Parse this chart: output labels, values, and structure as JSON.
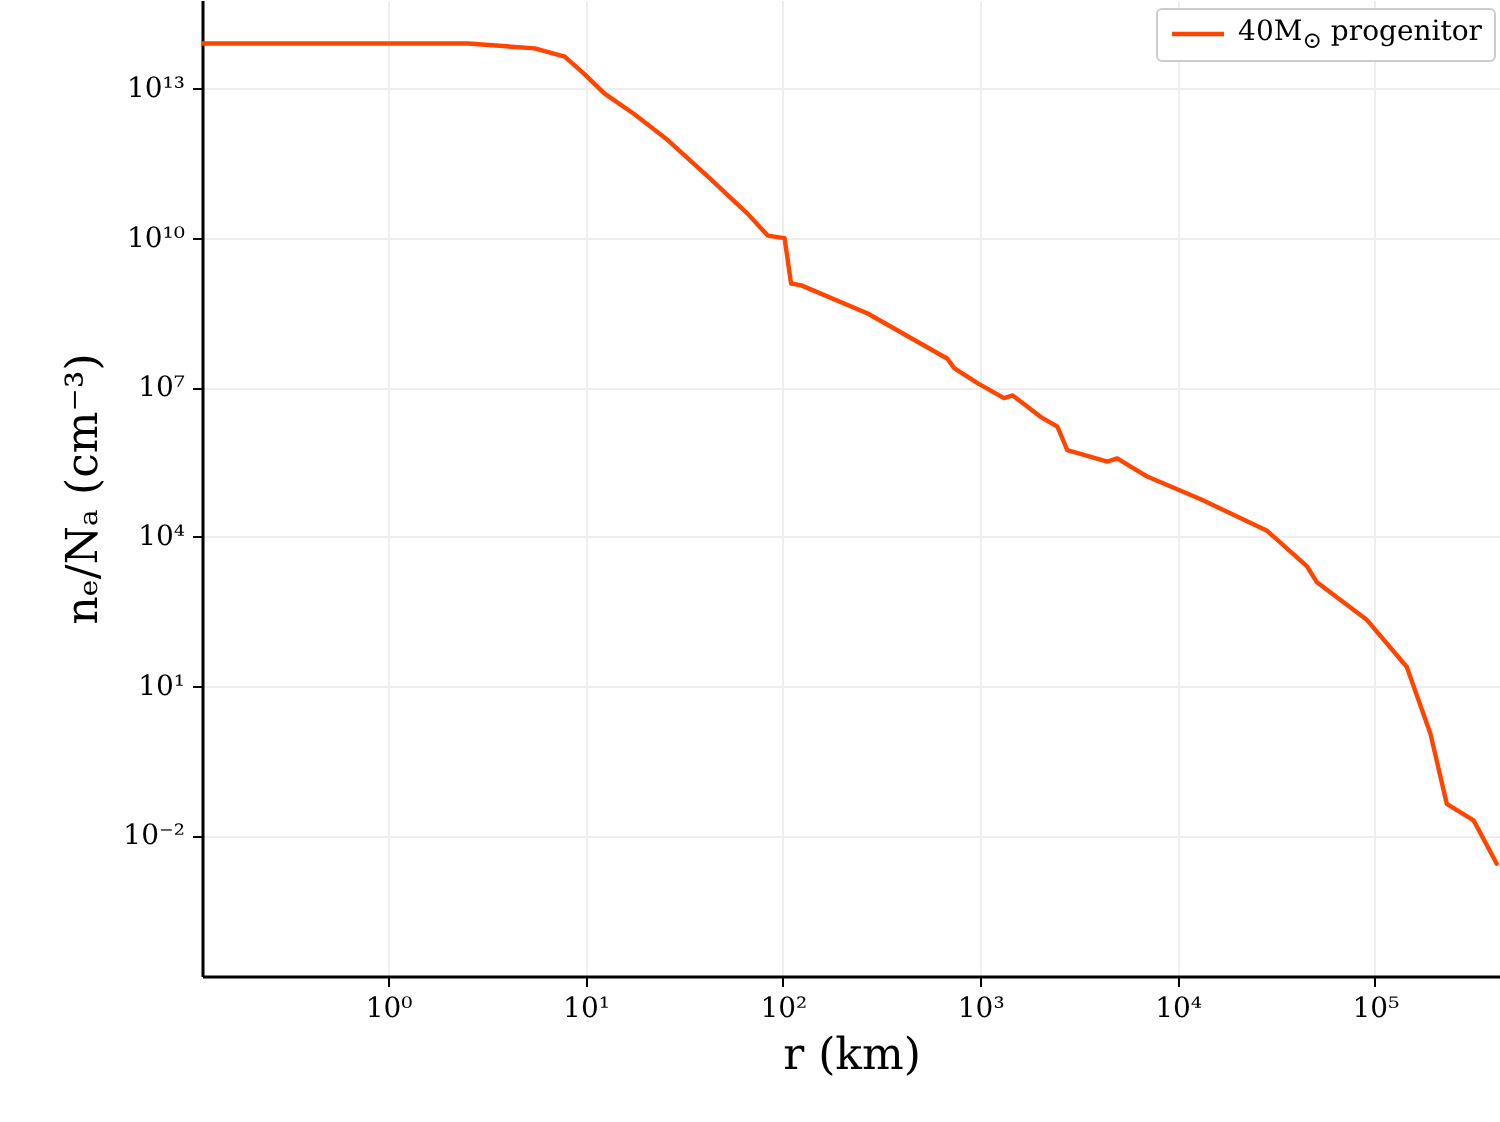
{
  "chart_data": {
    "type": "line",
    "xlabel": "r (km)",
    "ylabel": "nₑ/Nₐ (cm⁻³)",
    "log": "xy",
    "grid": true,
    "legend": "top right",
    "line_style": "solid",
    "marker": "none",
    "xlim": [
      0.114,
      430000
    ],
    "ylim": [
      1.5e-05,
      590000000000000.0
    ],
    "xticks": [
      {
        "value": 1,
        "label": "10⁰"
      },
      {
        "value": 10,
        "label": "10¹"
      },
      {
        "value": 100,
        "label": "10²"
      },
      {
        "value": 1000,
        "label": "10³"
      },
      {
        "value": 10000,
        "label": "10⁴"
      },
      {
        "value": 100000,
        "label": "10⁵"
      }
    ],
    "yticks": [
      {
        "value": 0.01,
        "label": "10⁻²"
      },
      {
        "value": 10,
        "label": "10¹"
      },
      {
        "value": 10000,
        "label": "10⁴"
      },
      {
        "value": 10000000.0,
        "label": "10⁷"
      },
      {
        "value": 10000000000.0,
        "label": "10¹⁰"
      },
      {
        "value": 10000000000000.0,
        "label": "10¹³"
      }
    ],
    "x": [
      0.114,
      2.54,
      5.53,
      7.85,
      9.91,
      12.5,
      17.7,
      26.1,
      41.6,
      66.4,
      83.8,
      102,
      110,
      124,
      269,
      682,
      738,
      968,
      1320,
      1460,
      2030,
      2460,
      2760,
      4410,
      4940,
      6250,
      7010,
      13100,
      28400,
      45300,
      50800,
      91200,
      145000,
      191000,
      231000,
      316000,
      414000
    ],
    "series": [
      {
        "name": "40M$_{⊙}$ progenitor",
        "color": "#ff4500",
        "values": [
          79000000000000.0,
          79000000000000.0,
          63000000000000.0,
          43000000000000.0,
          19000000000000.0,
          7800000000000.0,
          3000000000000.0,
          910000000000.0,
          170000000000.0,
          30000000000.0,
          11000000000.0,
          9800000000.0,
          1200000000.0,
          1100000000.0,
          300000000.0,
          37000000.0,
          24000000.0,
          12000000.0,
          6000000.0,
          6800000.0,
          2500000.0,
          1600000.0,
          540000.0,
          320000.0,
          370000.0,
          210000.0,
          160000.0,
          56000.0,
          13000.0,
          2500,
          1200,
          210,
          24,
          1.1,
          0.043,
          0.02,
          0.0027
        ]
      }
    ]
  }
}
